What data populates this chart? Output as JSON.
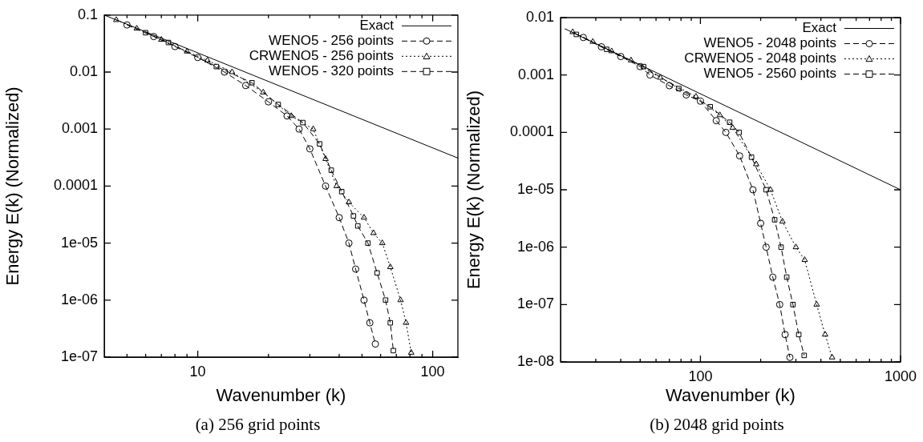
{
  "chart_data": [
    {
      "type": "line",
      "xlabel": "Wavenumber (k)",
      "ylabel": "Energy E(k) (Normalized)",
      "annotations": [
        "(a) 256 grid points"
      ],
      "log": "xy",
      "grid": false,
      "legend": "top right",
      "xlim": [
        4,
        128
      ],
      "ylim": [
        1e-07,
        0.1
      ],
      "xticks": [
        {
          "value": 5,
          "label": null
        },
        {
          "value": 6,
          "label": null
        },
        {
          "value": 7,
          "label": null
        },
        {
          "value": 8,
          "label": null
        },
        {
          "value": 9,
          "label": null
        },
        10,
        {
          "value": 20,
          "label": null
        },
        {
          "value": 30,
          "label": null
        },
        {
          "value": 40,
          "label": null
        },
        {
          "value": 50,
          "label": null
        },
        {
          "value": 60,
          "label": null
        },
        {
          "value": 70,
          "label": null
        },
        {
          "value": 80,
          "label": null
        },
        {
          "value": 90,
          "label": null
        },
        100
      ],
      "yticks": [
        0.1,
        0.01,
        0.001,
        0.0001,
        {
          "value": 1e-05,
          "label": "1e-05"
        },
        {
          "value": 1e-06,
          "label": "1e-06"
        },
        {
          "value": 1e-07,
          "label": "1e-07"
        }
      ],
      "series": [
        {
          "name": "Exact",
          "color": "#000000",
          "marker": "none",
          "line_style": "solid",
          "x": [
            4,
            128
          ],
          "values": [
            0.1,
            0.00031
          ]
        },
        {
          "name": "WENO5 - 256 points",
          "color": "#000000",
          "marker": "circle",
          "line_style": "dashed",
          "x": [
            5,
            6.5,
            8,
            10,
            13,
            16,
            20,
            24,
            27,
            30,
            35,
            40,
            44,
            47,
            51,
            54,
            57
          ],
          "values": [
            0.067,
            0.042,
            0.028,
            0.018,
            0.01,
            0.0058,
            0.003,
            0.0017,
            0.001,
            0.00045,
            0.0001,
            2.8e-05,
            1e-05,
            3.5e-06,
            1e-06,
            4e-07,
            1.7e-07
          ]
        },
        {
          "name": "CRWENO5 - 256 points",
          "color": "#000000",
          "marker": "triangle",
          "line_style": "dotted",
          "x": [
            4.5,
            5.5,
            7,
            9,
            11,
            14,
            19,
            25,
            31,
            35,
            39,
            44,
            51,
            56,
            61,
            66,
            73,
            77,
            81
          ],
          "values": [
            0.082,
            0.058,
            0.037,
            0.023,
            0.016,
            0.01,
            0.0044,
            0.0017,
            0.001,
            0.0003,
            0.0001,
            5.2e-05,
            2.8e-05,
            1.5e-05,
            1e-05,
            3.8e-06,
            1e-06,
            4e-07,
            1.2e-07
          ]
        },
        {
          "name": "WENO5 - 320 points",
          "color": "#000000",
          "marker": "square",
          "line_style": "dashed",
          "x": [
            6,
            7.5,
            12,
            17,
            22,
            28,
            33,
            37,
            41,
            46,
            48,
            53,
            58,
            63,
            66,
            68
          ],
          "values": [
            0.049,
            0.033,
            0.0125,
            0.0065,
            0.0027,
            0.0013,
            0.00055,
            0.00019,
            8e-05,
            3e-05,
            2e-05,
            1e-05,
            3e-06,
            1e-06,
            4e-07,
            1.3e-07
          ]
        }
      ]
    },
    {
      "type": "line",
      "xlabel": "Wavenumber (k)",
      "ylabel": "Energy E(k) (Normalized)",
      "annotations": [
        "(b) 2048 grid points"
      ],
      "log": "xy",
      "grid": false,
      "legend": "top right",
      "xlim": [
        20,
        1000
      ],
      "ylim": [
        1e-08,
        0.01
      ],
      "xticks": [
        {
          "value": 30,
          "label": null
        },
        {
          "value": 40,
          "label": null
        },
        {
          "value": 50,
          "label": null
        },
        {
          "value": 60,
          "label": null
        },
        {
          "value": 70,
          "label": null
        },
        {
          "value": 80,
          "label": null
        },
        {
          "value": 90,
          "label": null
        },
        100,
        {
          "value": 200,
          "label": null
        },
        {
          "value": 300,
          "label": null
        },
        {
          "value": 400,
          "label": null
        },
        {
          "value": 500,
          "label": null
        },
        {
          "value": 600,
          "label": null
        },
        {
          "value": 700,
          "label": null
        },
        {
          "value": 800,
          "label": null
        },
        {
          "value": 900,
          "label": null
        },
        1000
      ],
      "yticks": [
        0.01,
        0.001,
        0.0001,
        {
          "value": 1e-05,
          "label": "1e-05"
        },
        {
          "value": 1e-06,
          "label": "1e-06"
        },
        {
          "value": 1e-07,
          "label": "1e-07"
        },
        {
          "value": 1e-08,
          "label": "1e-08"
        }
      ],
      "series": [
        {
          "name": "Exact",
          "color": "#000000",
          "marker": "none",
          "line_style": "solid",
          "x": [
            21,
            1000
          ],
          "values": [
            0.0064,
            1e-05
          ]
        },
        {
          "name": "WENO5 - 2048 points",
          "color": "#000000",
          "marker": "circle",
          "line_style": "dashed",
          "x": [
            26,
            32,
            40,
            50,
            56,
            70,
            85,
            100,
            120,
            134,
            157,
            183,
            200,
            213,
            230,
            249,
            265,
            280
          ],
          "values": [
            0.0045,
            0.0031,
            0.0021,
            0.0014,
            0.001,
            0.00065,
            0.00045,
            0.00035,
            0.00016,
            0.0001,
            3.9e-05,
            1e-05,
            2.6e-06,
            1e-06,
            3e-07,
            1e-07,
            3e-08,
            1.2e-08
          ]
        },
        {
          "name": "CRWENO5 - 2048 points",
          "color": "#000000",
          "marker": "triangle",
          "line_style": "dotted",
          "x": [
            23,
            29,
            36,
            45,
            63,
            95,
            125,
            145,
            190,
            224,
            257,
            300,
            332,
            381,
            420,
            455
          ],
          "values": [
            0.0056,
            0.0038,
            0.0026,
            0.0018,
            0.0009,
            0.00042,
            0.0002,
            0.00012,
            2.8e-05,
            1e-05,
            2.8e-06,
            1e-06,
            6e-07,
            1e-07,
            3e-08,
            1.2e-08
          ]
        },
        {
          "name": "WENO5 - 2560 points",
          "color": "#000000",
          "marker": "square",
          "line_style": "dashed",
          "x": [
            24,
            34,
            52,
            78,
            112,
            140,
            156,
            180,
            213,
            235,
            253,
            270,
            290,
            310,
            330
          ],
          "values": [
            0.0051,
            0.0028,
            0.0014,
            0.00058,
            0.00028,
            0.00015,
            0.0001,
            3.7e-05,
            1e-05,
            3e-06,
            1e-06,
            3e-07,
            1e-07,
            3e-08,
            1.3e-08
          ]
        }
      ]
    }
  ]
}
